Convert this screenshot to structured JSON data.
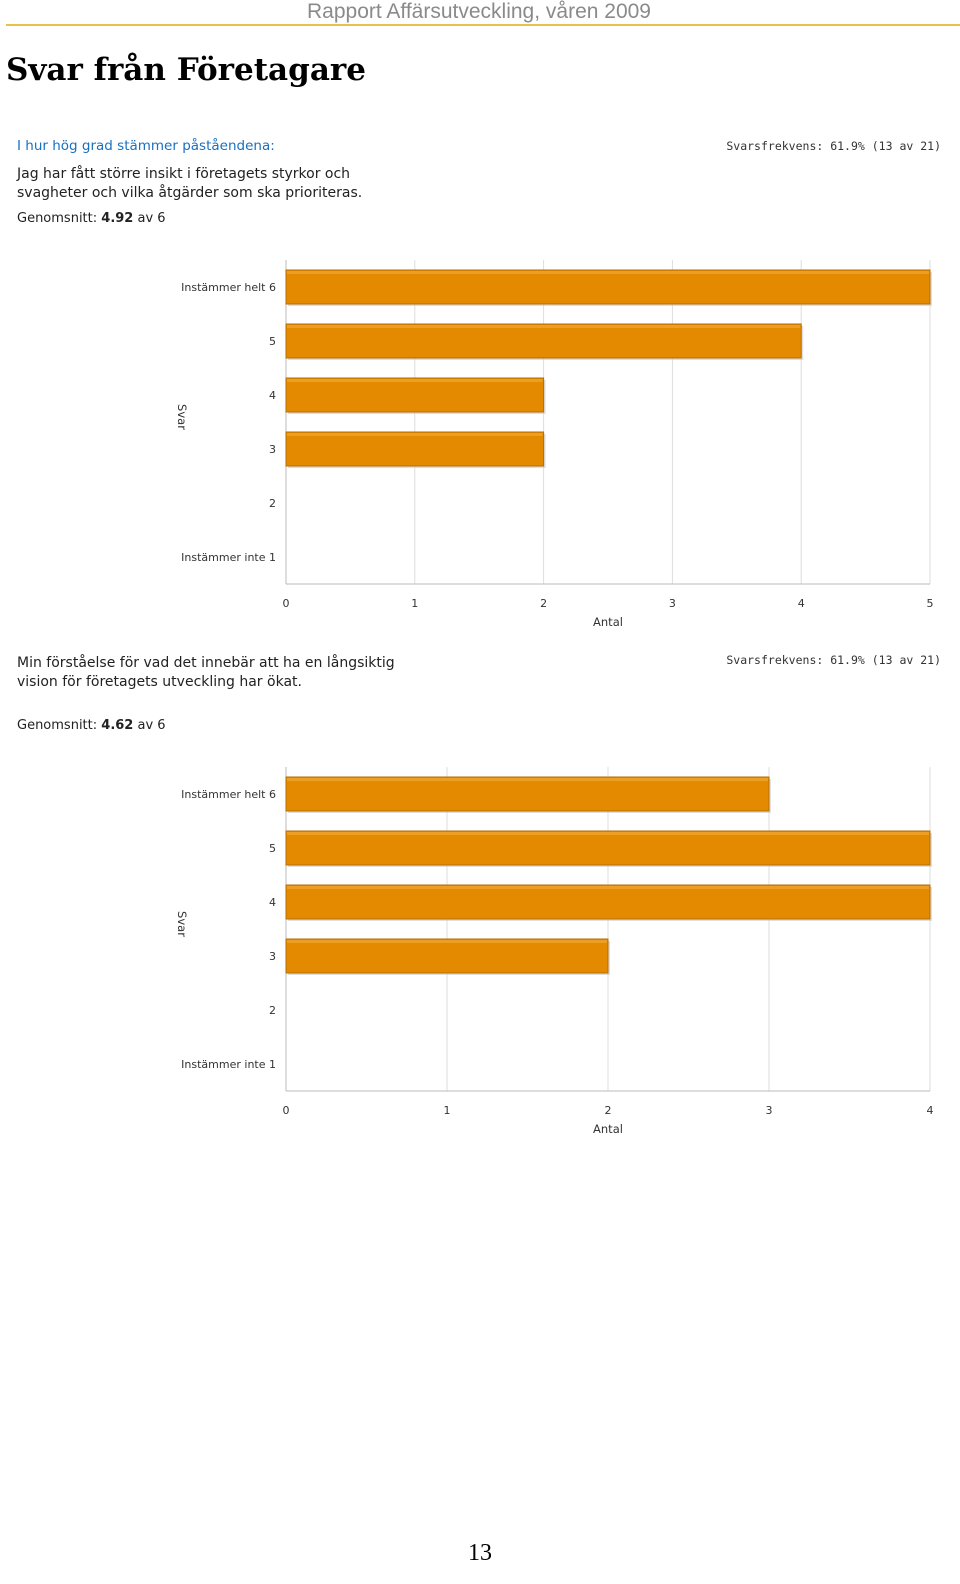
{
  "header": {
    "running_title": "Rapport Affärsutveckling, våren 2009"
  },
  "page_title": "Svar från Företagare",
  "intro": "I hur hög grad stämmer påståendena:",
  "colors": {
    "bar": "#e38a00",
    "bar_edge": "#b86e00",
    "grid": "#dddddd",
    "axis": "#bbbbbb"
  },
  "chart_data": [
    {
      "type": "bar",
      "orientation": "horizontal",
      "title": "Jag har fått större insikt i företagets styrkor och svagheter och vilka åtgärder som ska prioriteras.",
      "response_rate": "Svarsfrekvens: 61.9% (13 av 21)",
      "mean_label": "Genomsnitt:",
      "mean_value": "4.92",
      "mean_suffix": "av 6",
      "categories": [
        "Instämmer helt 6",
        "5",
        "4",
        "3",
        "2",
        "Instämmer inte 1"
      ],
      "values": [
        5,
        4,
        2,
        2,
        0,
        0
      ],
      "xlabel": "Antal",
      "ylabel": "Svar",
      "xlim": [
        0,
        5
      ],
      "xticks": [
        "0",
        "1",
        "2",
        "3",
        "4",
        "5"
      ],
      "grid": true
    },
    {
      "type": "bar",
      "orientation": "horizontal",
      "title": "Min förståelse för vad det innebär att ha en långsiktig vision för företagets utveckling har ökat.",
      "response_rate": "Svarsfrekvens: 61.9% (13 av 21)",
      "mean_label": "Genomsnitt:",
      "mean_value": "4.62",
      "mean_suffix": "av 6",
      "categories": [
        "Instämmer helt 6",
        "5",
        "4",
        "3",
        "2",
        "Instämmer inte 1"
      ],
      "values": [
        3,
        4,
        4,
        2,
        0,
        0
      ],
      "xlabel": "Antal",
      "ylabel": "Svar",
      "xlim": [
        0,
        4
      ],
      "xticks": [
        "0",
        "1",
        "2",
        "3",
        "4"
      ],
      "grid": true
    }
  ],
  "page_number": "13"
}
